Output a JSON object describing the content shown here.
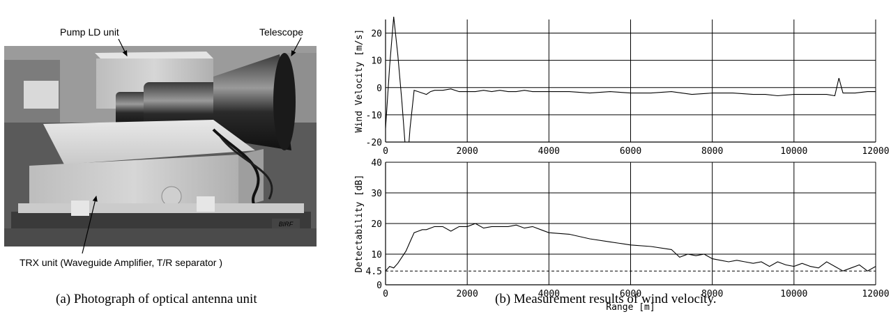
{
  "photo": {
    "labels": {
      "pump": "Pump LD unit",
      "telescope": "Telescope",
      "trx": "TRX unit  (Waveguide Amplifier, T/R separator )",
      "plate": "BIRF"
    }
  },
  "captions": {
    "a": "(a) Photograph of optical antenna unit",
    "b": "(b) Measurement results of wind velocity."
  },
  "chart_data": [
    {
      "type": "line",
      "title": "",
      "xlabel": "",
      "ylabel": "Wind Velocity [m/s]",
      "xlim": [
        0,
        12000
      ],
      "ylim": [
        -20,
        25
      ],
      "xticks": [
        0,
        2000,
        4000,
        6000,
        8000,
        10000,
        12000
      ],
      "yticks": [
        -20,
        -10,
        0,
        10,
        20
      ],
      "grid": true,
      "series": [
        {
          "x": [
            0,
            100,
            200,
            300,
            400,
            500,
            550,
            600,
            700,
            800,
            900,
            1000,
            1100,
            1200,
            1400,
            1600,
            1800,
            2000,
            2200,
            2400,
            2600,
            2800,
            3000,
            3200,
            3400,
            3600,
            3800,
            4000,
            4500,
            5000,
            5500,
            6000,
            6500,
            7000,
            7500,
            8000,
            8500,
            9000,
            9300,
            9600,
            10000,
            10500,
            10800,
            11000,
            11100,
            11200,
            11300,
            11500,
            11800,
            12000
          ],
          "y": [
            -15,
            8,
            26,
            12,
            -5,
            -25,
            -25,
            -15,
            -1,
            -1.5,
            -2,
            -2.5,
            -1.5,
            -1,
            -1,
            -0.5,
            -1.5,
            -1.5,
            -1.5,
            -1,
            -1.5,
            -1,
            -1.5,
            -1.5,
            -1,
            -1.5,
            -1.5,
            -1.5,
            -1.5,
            -2,
            -1.5,
            -2,
            -2,
            -1.5,
            -2.5,
            -2,
            -2,
            -2.5,
            -2.5,
            -3,
            -2.5,
            -2.5,
            -2.5,
            -3,
            3.5,
            -2,
            -2,
            -2,
            -1.5,
            -1.5
          ]
        }
      ]
    },
    {
      "type": "line",
      "title": "",
      "xlabel": "Range [m]",
      "ylabel": "Detectability [dB]",
      "xlim": [
        0,
        12000
      ],
      "ylim": [
        0,
        40
      ],
      "xticks": [
        0,
        2000,
        4000,
        6000,
        8000,
        10000,
        12000
      ],
      "yticks": [
        0,
        4.5,
        10,
        20,
        30,
        40
      ],
      "grid": true,
      "threshold": 4.5,
      "series": [
        {
          "x": [
            0,
            100,
            200,
            300,
            400,
            500,
            600,
            700,
            800,
            900,
            1000,
            1200,
            1400,
            1600,
            1800,
            2000,
            2200,
            2400,
            2600,
            2800,
            3000,
            3200,
            3400,
            3600,
            3800,
            4000,
            4500,
            5000,
            5500,
            6000,
            6500,
            7000,
            7200,
            7400,
            7600,
            7800,
            8000,
            8200,
            8400,
            8600,
            8800,
            9000,
            9200,
            9400,
            9600,
            9800,
            10000,
            10200,
            10400,
            10600,
            10800,
            11000,
            11200,
            11400,
            11600,
            11800,
            12000
          ],
          "y": [
            4.5,
            6,
            5.5,
            7,
            9,
            11,
            14,
            17,
            17.5,
            18,
            18,
            19,
            19,
            17.5,
            19,
            19,
            20,
            18.5,
            19,
            19,
            19,
            19.5,
            18.5,
            19,
            18,
            17,
            16.5,
            15,
            14,
            13,
            12.5,
            11.5,
            9,
            10,
            9.5,
            10,
            8.5,
            8,
            7.5,
            8,
            7.5,
            7,
            7.5,
            6,
            7.5,
            6.5,
            6,
            7,
            6,
            5.5,
            7.5,
            6,
            4.5,
            5.5,
            6.5,
            4.5,
            6
          ]
        }
      ]
    }
  ]
}
